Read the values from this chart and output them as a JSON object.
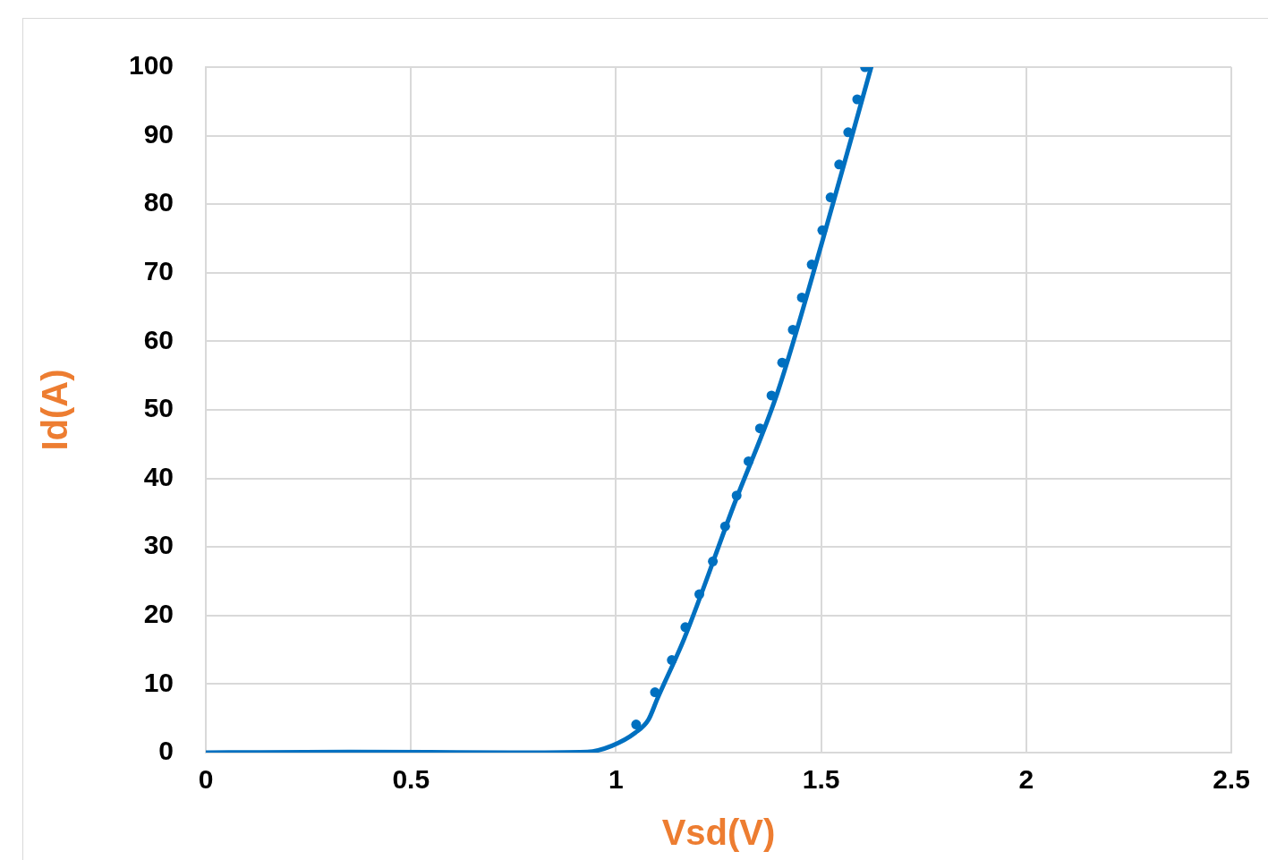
{
  "chart_data": {
    "type": "line",
    "xlabel": "Vsd(V)",
    "ylabel": "Id(A)",
    "xlim": [
      0,
      2.5
    ],
    "xticks": [
      0,
      0.5,
      1,
      1.5,
      2,
      2.5
    ],
    "ylim": [
      0,
      100
    ],
    "yticks": [
      0,
      10,
      20,
      30,
      40,
      50,
      60,
      70,
      80,
      90,
      100
    ],
    "grid": true,
    "legend": false,
    "line_style": "solid",
    "series": [
      {
        "color": "#0070c0",
        "marker": "none",
        "x": [
          0,
          0.35,
          0.74,
          0.93,
          0.99,
          1.047,
          1.079,
          1.101,
          1.166,
          1.286,
          1.394,
          1.503,
          1.622
        ],
        "values": [
          0,
          0.1,
          0,
          0.1,
          1,
          2.9,
          4.8,
          7.9,
          16.6,
          35.9,
          52.6,
          74.6,
          100
        ]
      },
      {
        "type": "scatter",
        "color": "#0070c0",
        "marker": "circle",
        "x": [
          1.049,
          1.095,
          1.136,
          1.169,
          1.203,
          1.236,
          1.266,
          1.294,
          1.323,
          1.351,
          1.379,
          1.405,
          1.431,
          1.453,
          1.477,
          1.503,
          1.523,
          1.544,
          1.566,
          1.588,
          1.607
        ],
        "values": [
          4.1,
          8.8,
          13.5,
          18.3,
          23.1,
          27.9,
          33,
          37.5,
          42.5,
          47.3,
          52.1,
          56.9,
          61.7,
          66.4,
          71.2,
          76.2,
          81,
          85.8,
          90.5,
          95.3,
          100
        ]
      }
    ]
  }
}
